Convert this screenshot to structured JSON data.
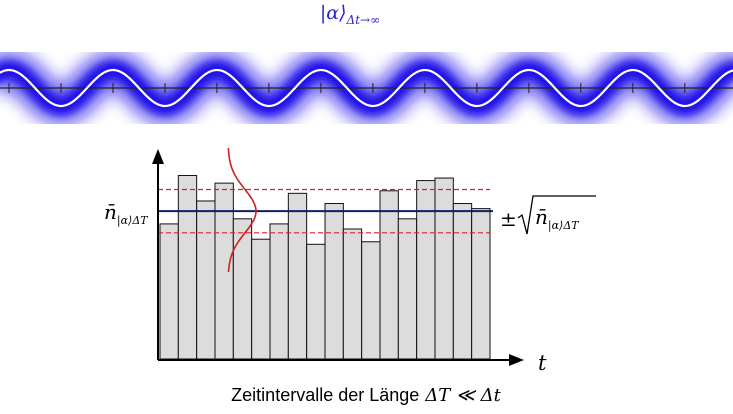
{
  "wave": {
    "label_main": "|α⟩",
    "label_sub": "Δt→∞",
    "label_color": "#2a22d6",
    "beam_color": "#1a0fe8",
    "periods_visible": 7
  },
  "histogram": {
    "counts": [
      5.3,
      7.2,
      6.2,
      6.9,
      5.5,
      4.7,
      5.3,
      6.5,
      4.5,
      6.1,
      5.1,
      4.6,
      6.6,
      5.5,
      7.0,
      7.1,
      6.1,
      5.9
    ],
    "mean": 5.8,
    "sigma": 0.85,
    "axis_max": 8.2,
    "bar_fill": "#dcdcdc",
    "mean_color": "#0d1f66",
    "band_color": "#e02020",
    "gauss_color": "#cc2222",
    "mean_label": {
      "symbol": "n̄",
      "subscript": "|α⟩ΔT"
    },
    "sigma_label": {
      "prefix": "±",
      "radicand_symbol": "n̄",
      "radicand_subscript": "|α⟩ΔT"
    },
    "t_axis_label": "t"
  },
  "caption": {
    "text": "Zeitintervalle der Länge",
    "math": "ΔT ≪ Δt"
  }
}
